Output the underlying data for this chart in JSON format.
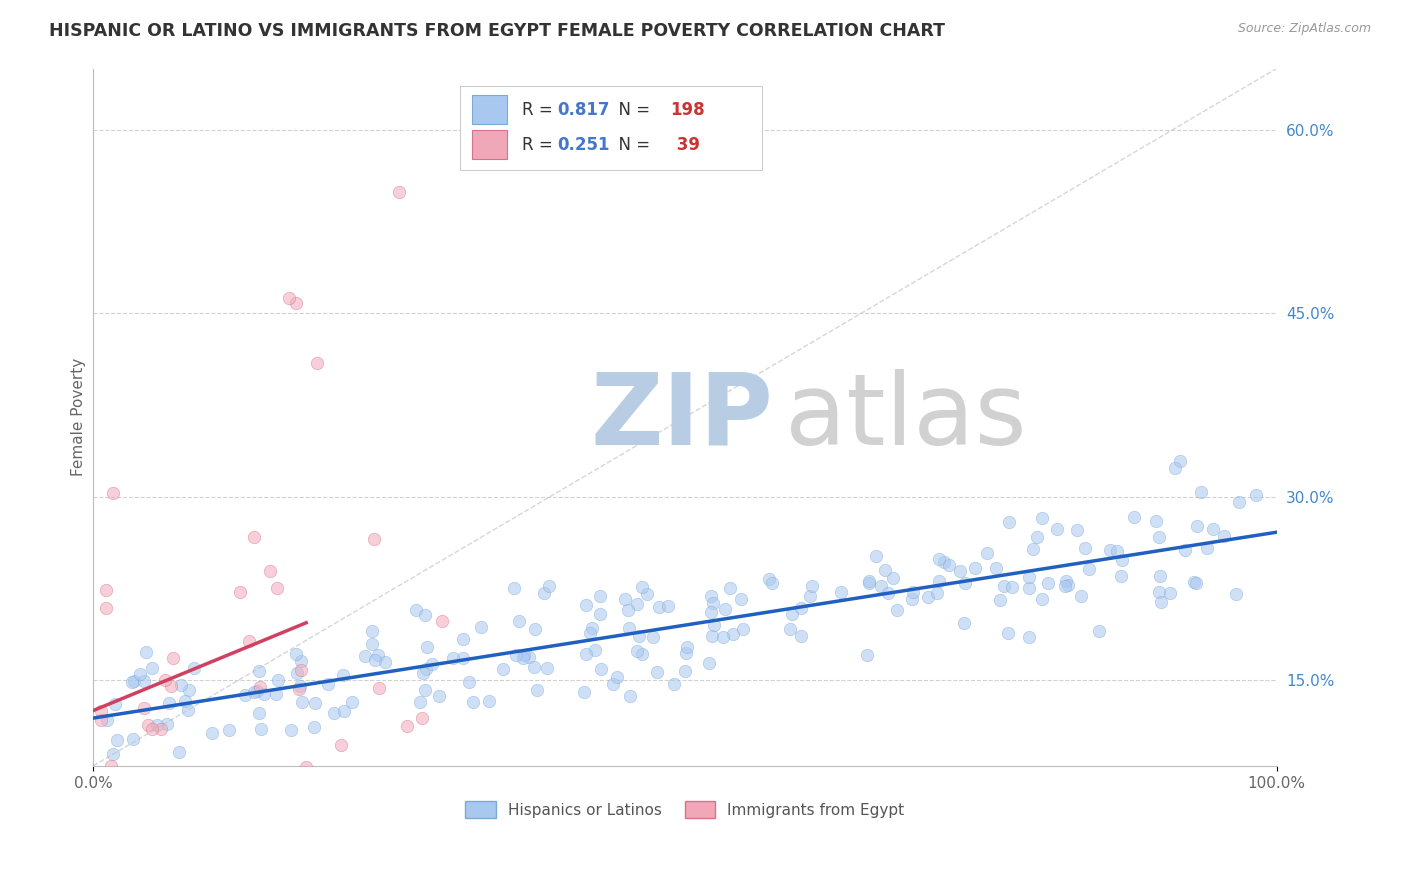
{
  "title": "HISPANIC OR LATINO VS IMMIGRANTS FROM EGYPT FEMALE POVERTY CORRELATION CHART",
  "source_text": "Source: ZipAtlas.com",
  "ylabel": "Female Poverty",
  "xmin": 0.0,
  "xmax": 1.0,
  "ymin": 0.08,
  "ymax": 0.65,
  "x_tick_labels": [
    "0.0%",
    "100.0%"
  ],
  "y_tick_labels": [
    "15.0%",
    "30.0%",
    "45.0%",
    "60.0%"
  ],
  "y_tick_values": [
    0.15,
    0.3,
    0.45,
    0.6
  ],
  "series1_color": "#a8c8f0",
  "series1_edge": "#7aaad8",
  "series2_color": "#f0a8b8",
  "series2_edge": "#d87090",
  "trendline1_color": "#2060c0",
  "trendline2_color": "#d04060",
  "diagonal_color": "#cccccc",
  "R1": 0.817,
  "N1": 198,
  "R2": 0.251,
  "N2": 39,
  "legend_label1": "Hispanics or Latinos",
  "legend_label2": "Immigrants from Egypt",
  "background_color": "#ffffff",
  "plot_bg_color": "#ffffff",
  "grid_color": "#cccccc",
  "title_color": "#333333",
  "source_color": "#999999",
  "scatter_alpha": 0.55,
  "scatter_size": 80,
  "legend_R_color": "#4477cc",
  "legend_N_color": "#cc3333",
  "legend_text_color": "#333333"
}
